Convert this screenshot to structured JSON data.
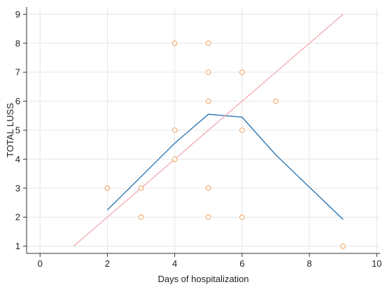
{
  "chart_data": {
    "type": "scatter",
    "title": "",
    "xlabel": "Days of hospitalization",
    "ylabel": "TOTAL LUSS",
    "xlim": [
      -0.4,
      10.1
    ],
    "ylim": [
      0.75,
      9.25
    ],
    "x_ticks": [
      "0",
      "2",
      "4",
      "6",
      "8",
      "10"
    ],
    "y_ticks": [
      "1",
      "2",
      "3",
      "4",
      "5",
      "6",
      "7",
      "8",
      "9"
    ],
    "grid": true,
    "series": [
      {
        "kind": "scatter",
        "color": "#f0a05a",
        "points": [
          {
            "x": 2,
            "y": 3
          },
          {
            "x": 3,
            "y": 3
          },
          {
            "x": 3,
            "y": 2
          },
          {
            "x": 4,
            "y": 8
          },
          {
            "x": 4,
            "y": 5
          },
          {
            "x": 4,
            "y": 4
          },
          {
            "x": 5,
            "y": 8
          },
          {
            "x": 5,
            "y": 7
          },
          {
            "x": 5,
            "y": 6
          },
          {
            "x": 5,
            "y": 3
          },
          {
            "x": 5,
            "y": 2
          },
          {
            "x": 6,
            "y": 7
          },
          {
            "x": 6,
            "y": 5
          },
          {
            "x": 6,
            "y": 2
          },
          {
            "x": 7,
            "y": 6
          },
          {
            "x": 9,
            "y": 1
          }
        ]
      },
      {
        "kind": "line",
        "color": "#1f6fb0",
        "points": [
          {
            "x": 2,
            "y": 2.25
          },
          {
            "x": 3,
            "y": 3.4
          },
          {
            "x": 4,
            "y": 4.55
          },
          {
            "x": 5,
            "y": 5.55
          },
          {
            "x": 6,
            "y": 5.45
          },
          {
            "x": 7,
            "y": 4.15
          },
          {
            "x": 9,
            "y": 1.92
          }
        ]
      },
      {
        "kind": "line",
        "color": "#f2a8b0",
        "points": [
          {
            "x": 1,
            "y": 1
          },
          {
            "x": 9,
            "y": 9
          }
        ]
      }
    ]
  }
}
